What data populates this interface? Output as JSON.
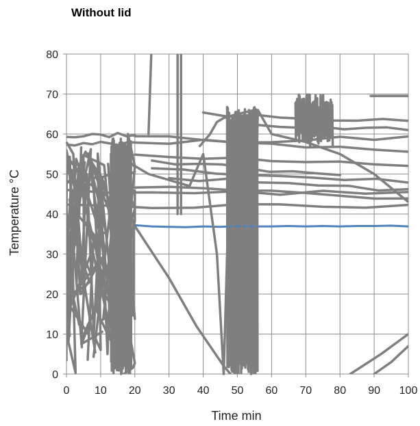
{
  "chart_data": {
    "type": "line",
    "title": "Without lid",
    "xlabel": "Time min",
    "ylabel": "Temperature °C",
    "xlim": [
      0,
      100
    ],
    "ylim": [
      0,
      80
    ],
    "xticks": [
      0,
      10,
      20,
      30,
      40,
      50,
      60,
      70,
      80,
      90,
      100
    ],
    "yticks": [
      0,
      10,
      20,
      30,
      40,
      50,
      60,
      70,
      80
    ],
    "grid": true,
    "legend": "none",
    "series": [
      {
        "color": "#4f81bd",
        "x": [
          20,
          25,
          30,
          35,
          40,
          45,
          50,
          55,
          60,
          65,
          70,
          75,
          80,
          85,
          90,
          95,
          100
        ],
        "y": [
          37.2,
          36.9,
          36.8,
          36.7,
          36.9,
          36.8,
          37.0,
          36.9,
          36.9,
          37.0,
          36.9,
          37.0,
          36.9,
          37.0,
          37.0,
          37.1,
          36.9
        ]
      },
      {
        "color": "#7f7f7f",
        "x": [
          0,
          2,
          4,
          6,
          8,
          10,
          12,
          14,
          16,
          18,
          20,
          24,
          28,
          32,
          36,
          40,
          44,
          46,
          48,
          50,
          52,
          54,
          56,
          60,
          70,
          80,
          90,
          100
        ],
        "y": [
          58,
          55,
          20,
          50,
          10,
          45,
          5,
          55,
          0,
          60,
          52,
          50,
          49,
          48,
          47,
          55,
          30,
          0,
          60,
          5,
          62,
          0,
          66,
          60,
          58,
          55,
          50,
          43
        ]
      }
    ]
  }
}
